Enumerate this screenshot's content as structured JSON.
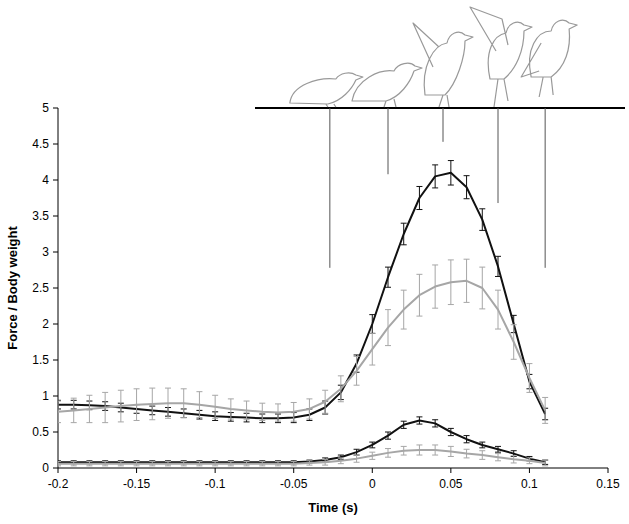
{
  "chart_data": {
    "type": "line",
    "x_label": "Time (s)",
    "y_label": "Force / Body weight",
    "xlim": [
      -0.2,
      0.15
    ],
    "ylim": [
      0,
      5
    ],
    "xticks": [
      -0.2,
      -0.15,
      -0.1,
      -0.05,
      0,
      0.05,
      0.1,
      0.15
    ],
    "yticks": [
      0,
      0.5,
      1,
      1.5,
      2,
      2.5,
      3,
      3.5,
      4,
      4.5,
      5
    ],
    "grid": false,
    "x": [
      -0.2,
      -0.19,
      -0.18,
      -0.17,
      -0.16,
      -0.15,
      -0.14,
      -0.13,
      -0.12,
      -0.11,
      -0.1,
      -0.09,
      -0.08,
      -0.07,
      -0.06,
      -0.05,
      -0.04,
      -0.03,
      -0.02,
      -0.01,
      0,
      0.01,
      0.02,
      0.03,
      0.04,
      0.05,
      0.06,
      0.07,
      0.08,
      0.09,
      0.1,
      0.11
    ],
    "series": [
      {
        "color": "#111111",
        "values": [
          0.88,
          0.88,
          0.87,
          0.86,
          0.84,
          0.82,
          0.8,
          0.78,
          0.76,
          0.74,
          0.72,
          0.71,
          0.7,
          0.69,
          0.69,
          0.7,
          0.74,
          0.84,
          1.05,
          1.45,
          2.0,
          2.65,
          3.25,
          3.75,
          4.05,
          4.1,
          3.9,
          3.45,
          2.8,
          2.0,
          1.2,
          0.75
        ],
        "errors": [
          0.06,
          0.06,
          0.06,
          0.06,
          0.06,
          0.06,
          0.06,
          0.06,
          0.06,
          0.06,
          0.06,
          0.06,
          0.06,
          0.06,
          0.06,
          0.07,
          0.08,
          0.09,
          0.1,
          0.12,
          0.13,
          0.14,
          0.15,
          0.16,
          0.16,
          0.17,
          0.16,
          0.15,
          0.14,
          0.12,
          0.1,
          0.08
        ]
      },
      {
        "color": "#a6a6a6",
        "values": [
          0.78,
          0.8,
          0.82,
          0.84,
          0.86,
          0.88,
          0.89,
          0.9,
          0.9,
          0.88,
          0.85,
          0.82,
          0.8,
          0.78,
          0.77,
          0.78,
          0.82,
          0.92,
          1.1,
          1.35,
          1.65,
          1.95,
          2.2,
          2.4,
          2.52,
          2.58,
          2.6,
          2.5,
          2.2,
          1.75,
          1.25,
          0.8
        ],
        "errors": [
          0.15,
          0.17,
          0.19,
          0.21,
          0.22,
          0.22,
          0.22,
          0.21,
          0.2,
          0.18,
          0.16,
          0.14,
          0.13,
          0.12,
          0.12,
          0.13,
          0.14,
          0.16,
          0.18,
          0.2,
          0.22,
          0.25,
          0.27,
          0.29,
          0.3,
          0.31,
          0.3,
          0.29,
          0.27,
          0.24,
          0.2,
          0.18
        ]
      },
      {
        "color": "#111111",
        "values": [
          0.08,
          0.08,
          0.08,
          0.08,
          0.08,
          0.08,
          0.08,
          0.08,
          0.08,
          0.08,
          0.08,
          0.08,
          0.08,
          0.08,
          0.08,
          0.08,
          0.09,
          0.11,
          0.15,
          0.22,
          0.32,
          0.45,
          0.6,
          0.66,
          0.62,
          0.5,
          0.4,
          0.32,
          0.26,
          0.2,
          0.13,
          0.08
        ],
        "errors": [
          0.02,
          0.02,
          0.02,
          0.02,
          0.02,
          0.02,
          0.02,
          0.02,
          0.02,
          0.02,
          0.02,
          0.02,
          0.02,
          0.02,
          0.02,
          0.02,
          0.02,
          0.03,
          0.03,
          0.04,
          0.04,
          0.05,
          0.05,
          0.05,
          0.05,
          0.05,
          0.05,
          0.04,
          0.04,
          0.04,
          0.03,
          0.03
        ]
      },
      {
        "color": "#a6a6a6",
        "values": [
          0.06,
          0.06,
          0.06,
          0.06,
          0.06,
          0.06,
          0.06,
          0.06,
          0.06,
          0.06,
          0.06,
          0.06,
          0.06,
          0.06,
          0.06,
          0.06,
          0.07,
          0.08,
          0.1,
          0.13,
          0.17,
          0.21,
          0.24,
          0.25,
          0.25,
          0.23,
          0.2,
          0.18,
          0.15,
          0.12,
          0.1,
          0.07
        ],
        "errors": [
          0.03,
          0.03,
          0.03,
          0.03,
          0.03,
          0.03,
          0.03,
          0.03,
          0.03,
          0.03,
          0.03,
          0.03,
          0.03,
          0.03,
          0.03,
          0.03,
          0.03,
          0.04,
          0.04,
          0.05,
          0.05,
          0.06,
          0.06,
          0.07,
          0.07,
          0.07,
          0.06,
          0.06,
          0.05,
          0.05,
          0.04,
          0.04
        ]
      }
    ],
    "phase_lines": {
      "x": [
        -0.027,
        0.01,
        0.045,
        0.08,
        0.11
      ],
      "y": [
        2.78,
        4.08,
        4.53,
        3.68,
        2.78
      ]
    }
  }
}
